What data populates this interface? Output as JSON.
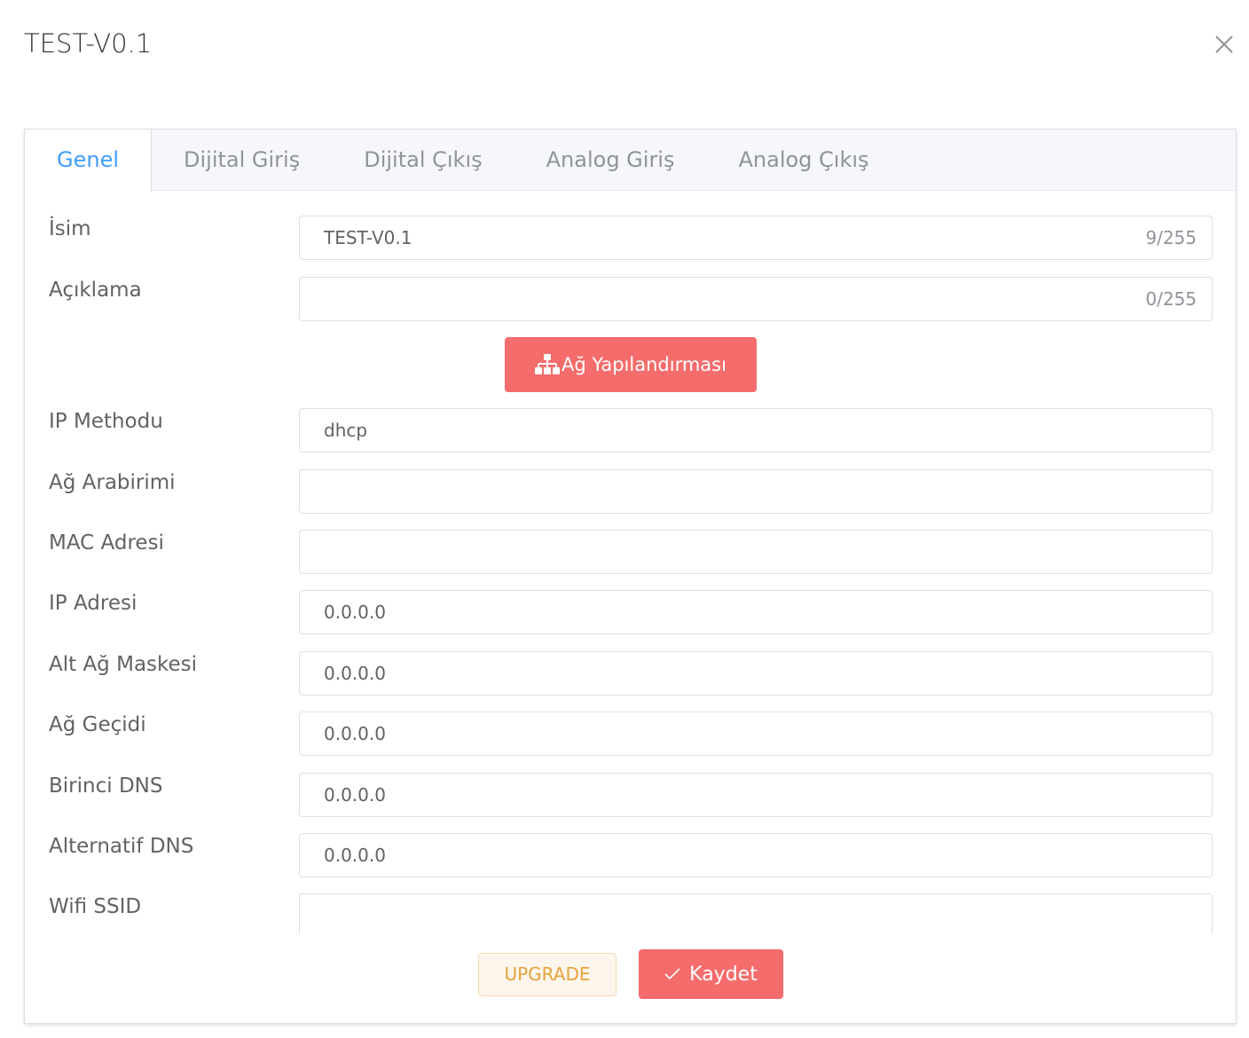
{
  "dialog": {
    "title": "TEST-V0.1"
  },
  "tabs": [
    {
      "label": "Genel"
    },
    {
      "label": "Dijital Giriş"
    },
    {
      "label": "Dijital Çıkış"
    },
    {
      "label": "Analog Giriş"
    },
    {
      "label": "Analog Çıkış"
    }
  ],
  "fields": {
    "name": {
      "label": "İsim",
      "value": "TEST-V0.1",
      "count": "9/255"
    },
    "description": {
      "label": "Açıklama",
      "value": "",
      "count": "0/255"
    },
    "network_button": "Ağ Yapılandırması",
    "ip_method": {
      "label": "IP Methodu",
      "value": "dhcp"
    },
    "interface": {
      "label": "Ağ Arabirimi",
      "value": ""
    },
    "mac": {
      "label": "MAC Adresi",
      "value": ""
    },
    "ip": {
      "label": "IP Adresi",
      "value": "0.0.0.0"
    },
    "subnet": {
      "label": "Alt Ağ Maskesi",
      "value": "0.0.0.0"
    },
    "gateway": {
      "label": "Ağ Geçidi",
      "value": "0.0.0.0"
    },
    "dns1": {
      "label": "Birinci DNS",
      "value": "0.0.0.0"
    },
    "dns2": {
      "label": "Alternatif DNS",
      "value": "0.0.0.0"
    },
    "wifi_ssid": {
      "label": "Wifi SSID",
      "value": ""
    }
  },
  "footer": {
    "upgrade": "UPGRADE",
    "save": "Kaydet"
  },
  "colors": {
    "accent": "#409eff",
    "danger": "#f56c6c",
    "warning": "#e6a23c"
  }
}
